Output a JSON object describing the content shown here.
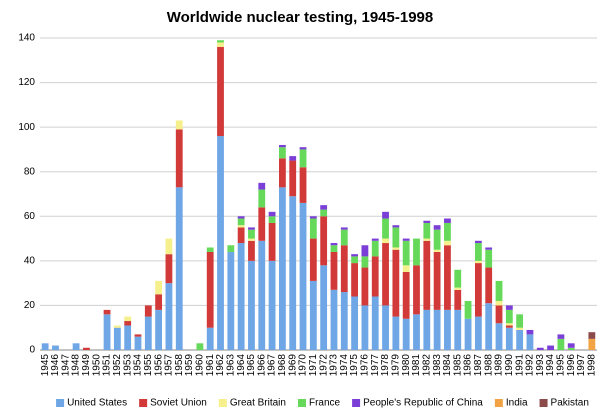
{
  "chart_data": {
    "type": "bar",
    "stacked": true,
    "title": "Worldwide nuclear testing, 1945-1998",
    "categories": [
      "1945",
      "1946",
      "1947",
      "1948",
      "1949",
      "1950",
      "1951",
      "1952",
      "1953",
      "1954",
      "1955",
      "1956",
      "1957",
      "1958",
      "1959",
      "1960",
      "1961",
      "1962",
      "1963",
      "1964",
      "1965",
      "1966",
      "1967",
      "1968",
      "1969",
      "1970",
      "1971",
      "1972",
      "1973",
      "1974",
      "1975",
      "1976",
      "1977",
      "1978",
      "1979",
      "1980",
      "1981",
      "1982",
      "1983",
      "1984",
      "1985",
      "1986",
      "1987",
      "1988",
      "1989",
      "1990",
      "1991",
      "1992",
      "1993",
      "1994",
      "1995",
      "1996",
      "1997",
      "1998"
    ],
    "series": [
      {
        "name": "United States",
        "color": "#6ea6e6",
        "values": [
          3,
          2,
          0,
          3,
          0,
          0,
          16,
          10,
          11,
          6,
          15,
          18,
          30,
          73,
          0,
          0,
          10,
          96,
          44,
          48,
          40,
          49,
          40,
          73,
          69,
          66,
          31,
          38,
          27,
          26,
          24,
          20,
          24,
          20,
          15,
          14,
          16,
          18,
          18,
          18,
          18,
          14,
          15,
          21,
          12,
          10,
          9,
          7,
          0,
          0,
          0,
          0,
          0,
          0
        ]
      },
      {
        "name": "Soviet Union",
        "color": "#d23a3a",
        "values": [
          0,
          0,
          0,
          0,
          1,
          0,
          2,
          0,
          2,
          1,
          5,
          7,
          13,
          26,
          0,
          0,
          34,
          40,
          0,
          7,
          9,
          15,
          17,
          13,
          16,
          16,
          19,
          22,
          17,
          21,
          15,
          17,
          18,
          28,
          30,
          21,
          22,
          31,
          26,
          29,
          9,
          0,
          24,
          16,
          8,
          1,
          0,
          0,
          0,
          0,
          0,
          0,
          0,
          0
        ]
      },
      {
        "name": "Great Britain",
        "color": "#f6f08c",
        "values": [
          0,
          0,
          0,
          0,
          0,
          0,
          0,
          1,
          2,
          0,
          0,
          6,
          7,
          4,
          0,
          0,
          0,
          2,
          0,
          1,
          1,
          0,
          0,
          0,
          0,
          0,
          0,
          0,
          0,
          0,
          0,
          0,
          0,
          2,
          1,
          3,
          0,
          1,
          1,
          2,
          1,
          0,
          1,
          0,
          2,
          1,
          1,
          0,
          0,
          0,
          0,
          0,
          0,
          0
        ]
      },
      {
        "name": "France",
        "color": "#66d95a",
        "values": [
          0,
          0,
          0,
          0,
          0,
          0,
          0,
          0,
          0,
          0,
          0,
          0,
          0,
          0,
          0,
          3,
          2,
          1,
          3,
          3,
          4,
          8,
          3,
          5,
          0,
          8,
          9,
          3,
          3,
          7,
          3,
          5,
          7,
          9,
          9,
          11,
          12,
          7,
          9,
          8,
          8,
          8,
          8,
          8,
          9,
          6,
          6,
          0,
          0,
          0,
          5,
          1,
          0,
          0
        ]
      },
      {
        "name": "People's Republic of China",
        "color": "#7b3fd8",
        "values": [
          0,
          0,
          0,
          0,
          0,
          0,
          0,
          0,
          0,
          0,
          0,
          0,
          0,
          0,
          0,
          0,
          0,
          0,
          0,
          1,
          1,
          3,
          2,
          1,
          2,
          1,
          1,
          2,
          1,
          1,
          1,
          5,
          1,
          3,
          1,
          1,
          0,
          1,
          2,
          2,
          0,
          0,
          1,
          1,
          0,
          2,
          0,
          2,
          1,
          2,
          2,
          2,
          0,
          0
        ]
      },
      {
        "name": "India",
        "color": "#f2a444",
        "values": [
          0,
          0,
          0,
          0,
          0,
          0,
          0,
          0,
          0,
          0,
          0,
          0,
          0,
          0,
          0,
          0,
          0,
          0,
          0,
          0,
          0,
          0,
          0,
          0,
          0,
          0,
          0,
          0,
          0,
          0,
          0,
          0,
          0,
          0,
          0,
          0,
          0,
          0,
          0,
          0,
          0,
          0,
          0,
          0,
          0,
          0,
          0,
          0,
          0,
          0,
          0,
          0,
          0,
          5
        ]
      },
      {
        "name": "Pakistan",
        "color": "#8c4a4a",
        "values": [
          0,
          0,
          0,
          0,
          0,
          0,
          0,
          0,
          0,
          0,
          0,
          0,
          0,
          0,
          0,
          0,
          0,
          0,
          0,
          0,
          0,
          0,
          0,
          0,
          0,
          0,
          0,
          0,
          0,
          0,
          0,
          0,
          0,
          0,
          0,
          0,
          0,
          0,
          0,
          0,
          0,
          0,
          0,
          0,
          0,
          0,
          0,
          0,
          0,
          0,
          0,
          0,
          0,
          3
        ]
      }
    ],
    "ylim": [
      0,
      140
    ],
    "yticks": [
      0,
      20,
      40,
      60,
      80,
      100,
      120,
      140
    ],
    "grid": true,
    "legend": "bottom"
  }
}
